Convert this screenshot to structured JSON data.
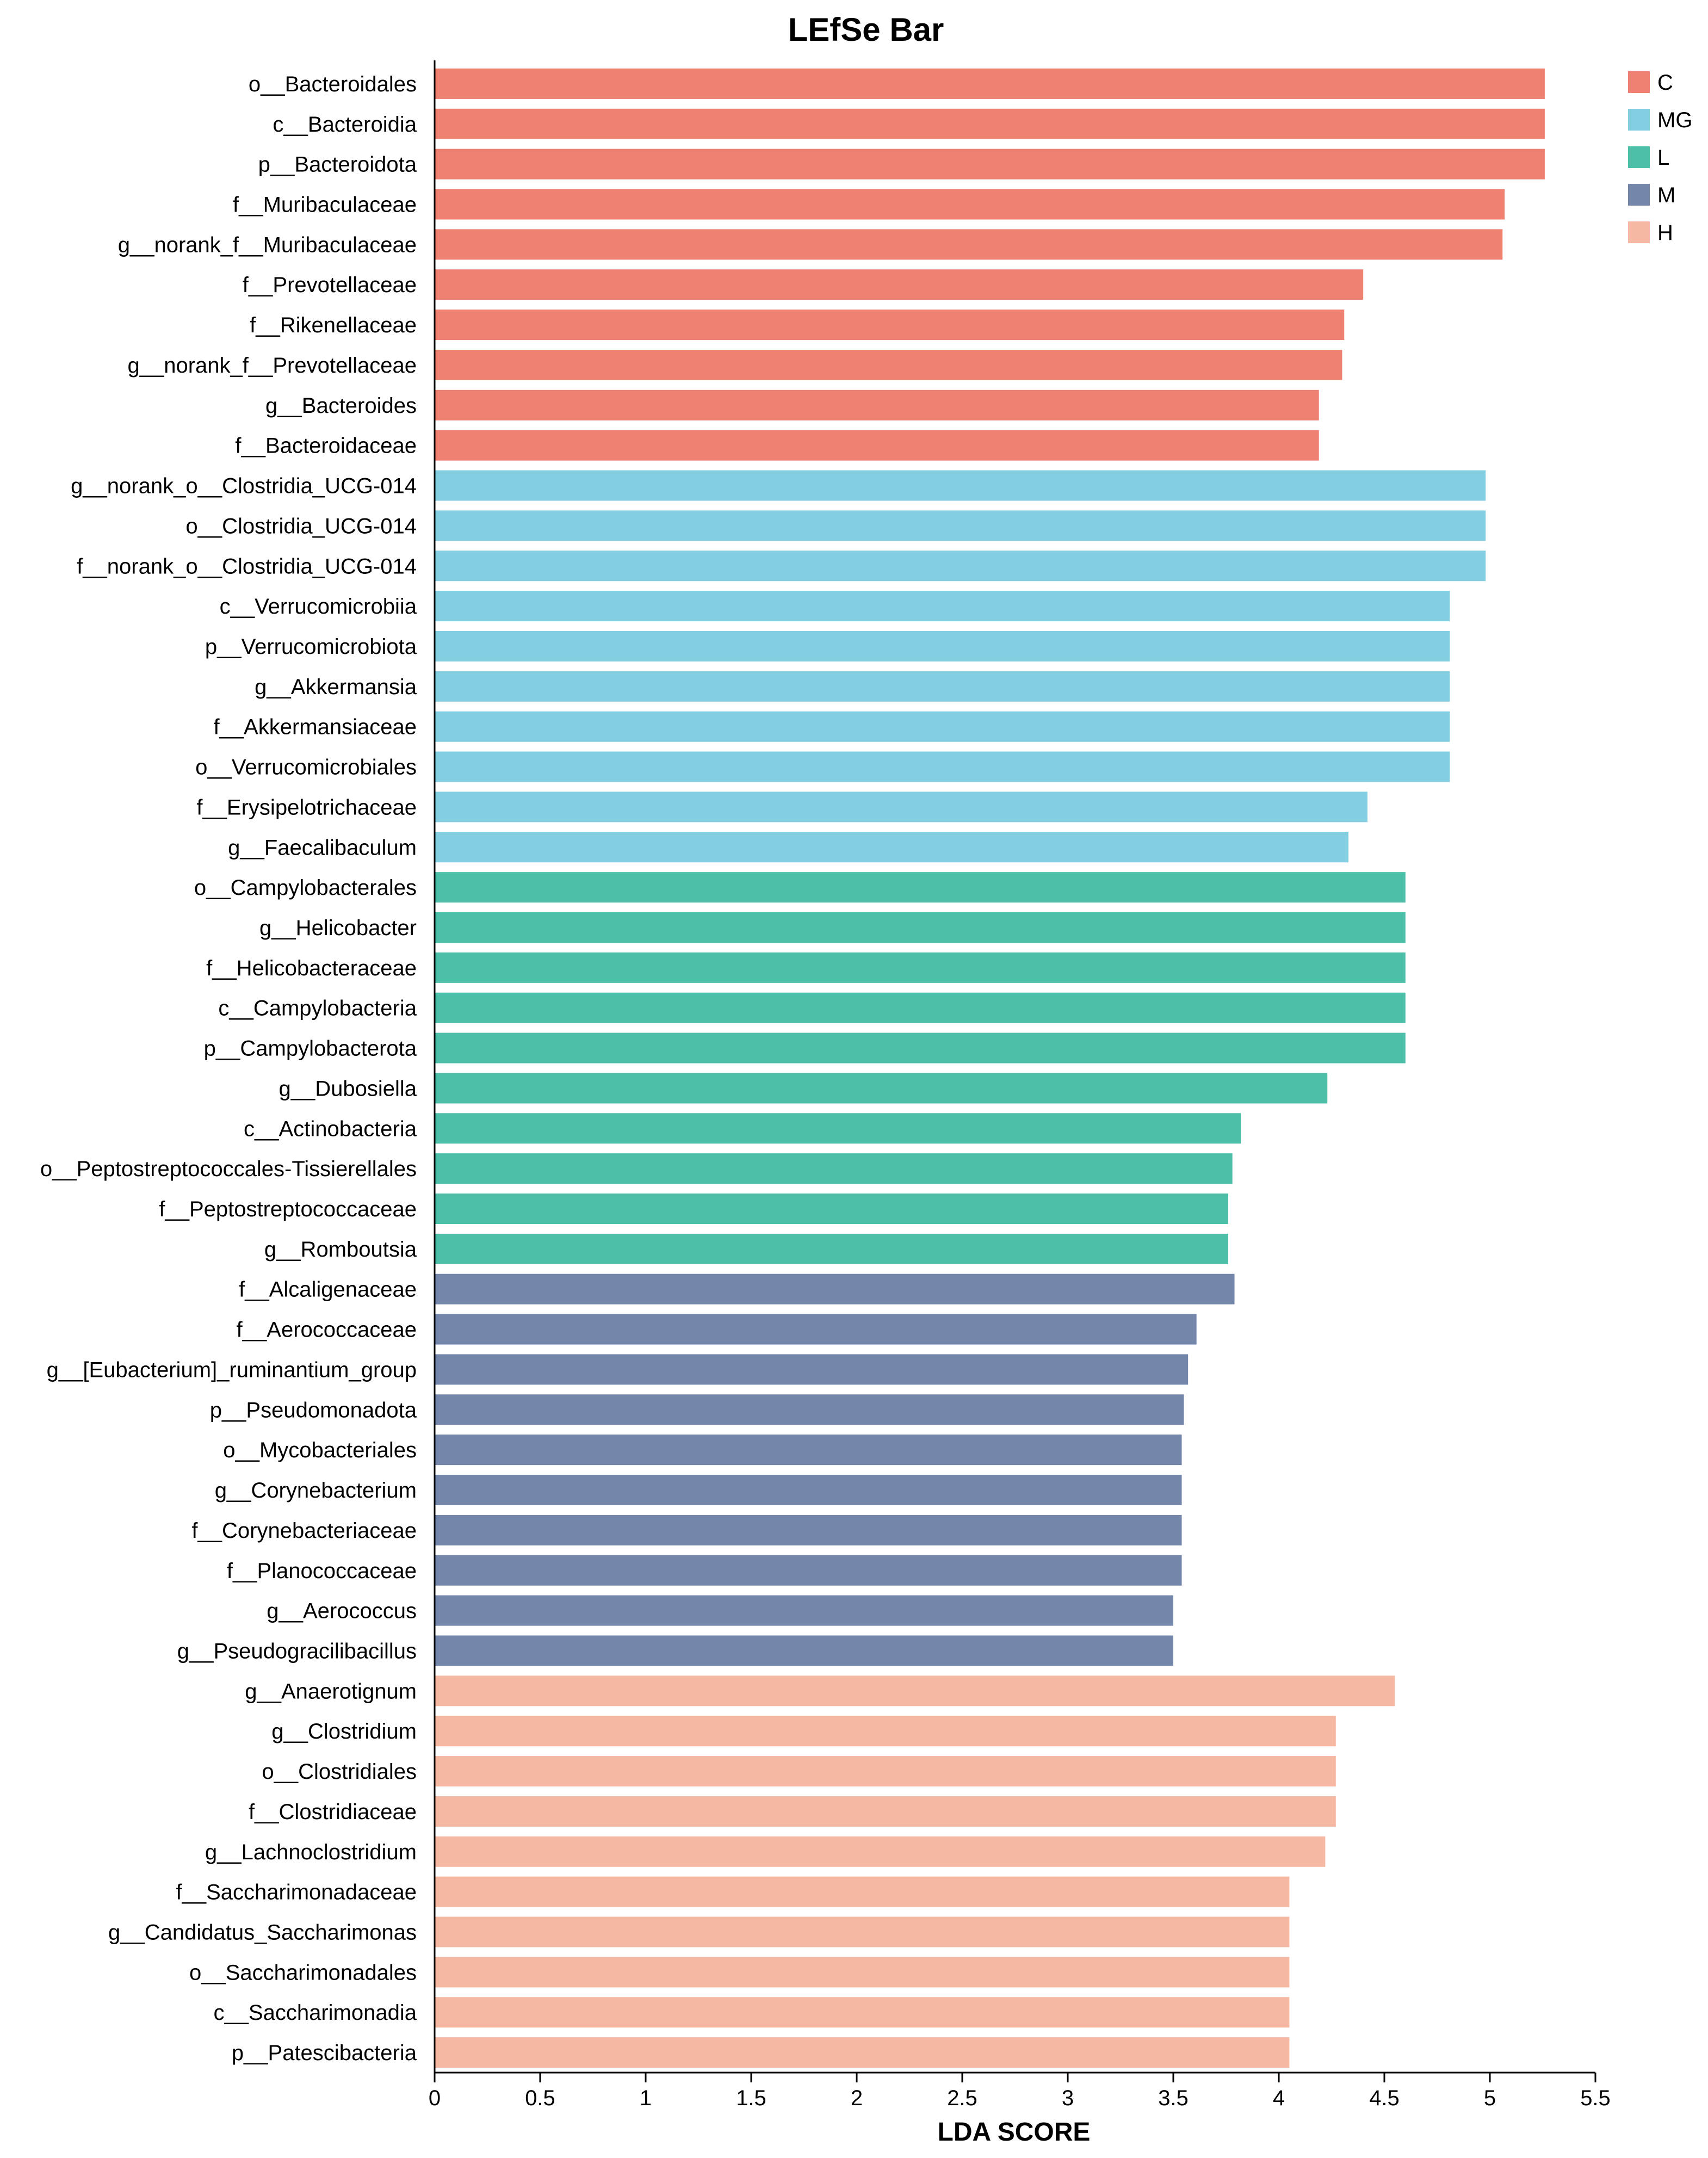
{
  "chart_data": {
    "type": "bar",
    "orientation": "horizontal",
    "title": "LEfSe Bar",
    "xlabel": "LDA SCORE",
    "ylabel": "",
    "xlim": [
      0,
      5.5
    ],
    "xticks": [
      "0",
      "0.5",
      "1",
      "1.5",
      "2",
      "2.5",
      "3",
      "3.5",
      "4",
      "4.5",
      "5",
      "5.5"
    ],
    "grid": false,
    "legend_position": "top-right",
    "groups": [
      {
        "name": "C",
        "color": "#EF8173"
      },
      {
        "name": "MG",
        "color": "#83CFE1"
      },
      {
        "name": "L",
        "color": "#4DBEA8"
      },
      {
        "name": "M",
        "color": "#7586AB"
      },
      {
        "name": "H",
        "color": "#F5B8A2"
      }
    ],
    "bars": [
      {
        "label": "o__Bacteroidales",
        "group": "C",
        "value": 5.26
      },
      {
        "label": "c__Bacteroidia",
        "group": "C",
        "value": 5.26
      },
      {
        "label": "p__Bacteroidota",
        "group": "C",
        "value": 5.26
      },
      {
        "label": "f__Muribaculaceae",
        "group": "C",
        "value": 5.07
      },
      {
        "label": "g__norank_f__Muribaculaceae",
        "group": "C",
        "value": 5.06
      },
      {
        "label": "f__Prevotellaceae",
        "group": "C",
        "value": 4.4
      },
      {
        "label": "f__Rikenellaceae",
        "group": "C",
        "value": 4.31
      },
      {
        "label": "g__norank_f__Prevotellaceae",
        "group": "C",
        "value": 4.3
      },
      {
        "label": "g__Bacteroides",
        "group": "C",
        "value": 4.19
      },
      {
        "label": "f__Bacteroidaceae",
        "group": "C",
        "value": 4.19
      },
      {
        "label": "g__norank_o__Clostridia_UCG-014",
        "group": "MG",
        "value": 4.98
      },
      {
        "label": "o__Clostridia_UCG-014",
        "group": "MG",
        "value": 4.98
      },
      {
        "label": "f__norank_o__Clostridia_UCG-014",
        "group": "MG",
        "value": 4.98
      },
      {
        "label": "c__Verrucomicrobiia",
        "group": "MG",
        "value": 4.81
      },
      {
        "label": "p__Verrucomicrobiota",
        "group": "MG",
        "value": 4.81
      },
      {
        "label": "g__Akkermansia",
        "group": "MG",
        "value": 4.81
      },
      {
        "label": "f__Akkermansiaceae",
        "group": "MG",
        "value": 4.81
      },
      {
        "label": "o__Verrucomicrobiales",
        "group": "MG",
        "value": 4.81
      },
      {
        "label": "f__Erysipelotrichaceae",
        "group": "MG",
        "value": 4.42
      },
      {
        "label": "g__Faecalibaculum",
        "group": "MG",
        "value": 4.33
      },
      {
        "label": "o__Campylobacterales",
        "group": "L",
        "value": 4.6
      },
      {
        "label": "g__Helicobacter",
        "group": "L",
        "value": 4.6
      },
      {
        "label": "f__Helicobacteraceae",
        "group": "L",
        "value": 4.6
      },
      {
        "label": "c__Campylobacteria",
        "group": "L",
        "value": 4.6
      },
      {
        "label": "p__Campylobacterota",
        "group": "L",
        "value": 4.6
      },
      {
        "label": "g__Dubosiella",
        "group": "L",
        "value": 4.23
      },
      {
        "label": "c__Actinobacteria",
        "group": "L",
        "value": 3.82
      },
      {
        "label": "o__Peptostreptococcales-Tissierellales",
        "group": "L",
        "value": 3.78
      },
      {
        "label": "f__Peptostreptococcaceae",
        "group": "L",
        "value": 3.76
      },
      {
        "label": "g__Romboutsia",
        "group": "L",
        "value": 3.76
      },
      {
        "label": "f__Alcaligenaceae",
        "group": "M",
        "value": 3.79
      },
      {
        "label": "f__Aerococcaceae",
        "group": "M",
        "value": 3.61
      },
      {
        "label": "g__[Eubacterium]_ruminantium_group",
        "group": "M",
        "value": 3.57
      },
      {
        "label": "p__Pseudomonadota",
        "group": "M",
        "value": 3.55
      },
      {
        "label": "o__Mycobacteriales",
        "group": "M",
        "value": 3.54
      },
      {
        "label": "g__Corynebacterium",
        "group": "M",
        "value": 3.54
      },
      {
        "label": "f__Corynebacteriaceae",
        "group": "M",
        "value": 3.54
      },
      {
        "label": "f__Planococcaceae",
        "group": "M",
        "value": 3.54
      },
      {
        "label": "g__Aerococcus",
        "group": "M",
        "value": 3.5
      },
      {
        "label": "g__Pseudogracilibacillus",
        "group": "M",
        "value": 3.5
      },
      {
        "label": "g__Anaerotignum",
        "group": "H",
        "value": 4.55
      },
      {
        "label": "g__Clostridium",
        "group": "H",
        "value": 4.27
      },
      {
        "label": "o__Clostridiales",
        "group": "H",
        "value": 4.27
      },
      {
        "label": "f__Clostridiaceae",
        "group": "H",
        "value": 4.27
      },
      {
        "label": "g__Lachnoclostridium",
        "group": "H",
        "value": 4.22
      },
      {
        "label": "f__Saccharimonadaceae",
        "group": "H",
        "value": 4.05
      },
      {
        "label": "g__Candidatus_Saccharimonas",
        "group": "H",
        "value": 4.05
      },
      {
        "label": "o__Saccharimonadales",
        "group": "H",
        "value": 4.05
      },
      {
        "label": "c__Saccharimonadia",
        "group": "H",
        "value": 4.05
      },
      {
        "label": "p__Patescibacteria",
        "group": "H",
        "value": 4.05
      }
    ]
  }
}
